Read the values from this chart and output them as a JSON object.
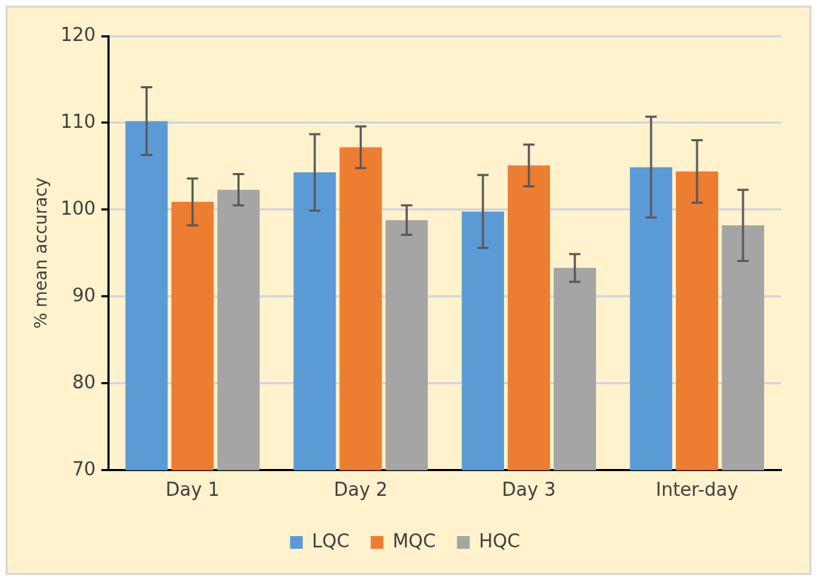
{
  "chart_data": {
    "type": "bar",
    "ylabel": "% mean accuracy",
    "categories": [
      "Day 1",
      "Day 2",
      "Day 3",
      "Inter-day"
    ],
    "series": [
      {
        "name": "LQC",
        "color": "#5b9bd5",
        "values": [
          110.2,
          104.3,
          99.8,
          104.9
        ],
        "errors": [
          3.9,
          4.4,
          4.2,
          5.8
        ]
      },
      {
        "name": "MQC",
        "color": "#ed7d31",
        "values": [
          100.9,
          107.2,
          105.1,
          104.4
        ],
        "errors": [
          2.7,
          2.4,
          2.4,
          3.6
        ]
      },
      {
        "name": "HQC",
        "color": "#a5a5a5",
        "values": [
          102.3,
          98.8,
          93.3,
          98.2
        ],
        "errors": [
          1.8,
          1.7,
          1.6,
          4.1
        ]
      }
    ],
    "ylim": [
      70,
      120
    ],
    "yticks": [
      70,
      80,
      90,
      100,
      110,
      120
    ],
    "grid": "y",
    "legend": "bottom"
  }
}
